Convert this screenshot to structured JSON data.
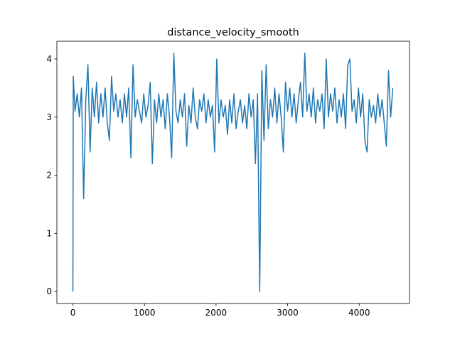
{
  "chart_data": {
    "type": "line",
    "title": "distance_velocity_smooth",
    "series": [
      {
        "color": "#1f77b4",
        "x": [
          0,
          5,
          30,
          60,
          90,
          120,
          150,
          180,
          210,
          240,
          270,
          300,
          330,
          360,
          390,
          420,
          450,
          480,
          510,
          540,
          570,
          600,
          630,
          660,
          690,
          720,
          750,
          780,
          810,
          840,
          870,
          900,
          930,
          960,
          990,
          1020,
          1050,
          1080,
          1110,
          1140,
          1170,
          1200,
          1230,
          1260,
          1290,
          1320,
          1350,
          1380,
          1410,
          1440,
          1470,
          1500,
          1530,
          1560,
          1590,
          1620,
          1650,
          1680,
          1710,
          1740,
          1770,
          1800,
          1830,
          1860,
          1890,
          1920,
          1950,
          1980,
          2010,
          2040,
          2070,
          2100,
          2130,
          2160,
          2190,
          2220,
          2250,
          2280,
          2310,
          2340,
          2370,
          2400,
          2430,
          2460,
          2490,
          2520,
          2550,
          2580,
          2610,
          2640,
          2670,
          2700,
          2730,
          2760,
          2790,
          2820,
          2850,
          2880,
          2910,
          2940,
          2970,
          3000,
          3030,
          3060,
          3090,
          3120,
          3150,
          3180,
          3210,
          3240,
          3270,
          3300,
          3330,
          3360,
          3390,
          3420,
          3450,
          3480,
          3510,
          3540,
          3570,
          3600,
          3630,
          3660,
          3690,
          3720,
          3750,
          3780,
          3810,
          3840,
          3870,
          3900,
          3930,
          3960,
          3990,
          4020,
          4050,
          4080,
          4110,
          4140,
          4170,
          4200,
          4230,
          4260,
          4290,
          4320,
          4350,
          4380,
          4410,
          4440,
          4470
        ],
        "values": [
          0,
          3.7,
          3.1,
          3.4,
          3.0,
          3.5,
          1.6,
          3.3,
          3.9,
          2.4,
          3.5,
          3.0,
          3.6,
          2.9,
          3.4,
          3.0,
          3.5,
          2.9,
          2.6,
          3.7,
          3.1,
          3.4,
          3.0,
          3.3,
          2.9,
          3.4,
          3.0,
          3.5,
          2.3,
          3.9,
          3.0,
          3.3,
          3.1,
          2.9,
          3.4,
          3.0,
          3.2,
          3.6,
          2.2,
          3.3,
          2.9,
          3.4,
          3.0,
          3.3,
          2.8,
          3.4,
          3.0,
          2.3,
          4.1,
          3.1,
          2.9,
          3.3,
          3.0,
          3.4,
          2.5,
          3.2,
          2.9,
          3.5,
          3.0,
          2.8,
          3.3,
          3.1,
          3.4,
          2.9,
          3.3,
          3.0,
          3.2,
          2.4,
          4.0,
          2.9,
          3.3,
          3.0,
          3.2,
          2.7,
          3.3,
          2.9,
          3.4,
          2.8,
          3.1,
          3.3,
          2.9,
          3.2,
          2.8,
          3.4,
          3.0,
          3.3,
          2.2,
          3.4,
          0.0,
          3.8,
          2.6,
          3.9,
          2.8,
          3.3,
          3.0,
          3.5,
          2.9,
          3.4,
          3.0,
          2.4,
          3.6,
          3.1,
          3.5,
          3.0,
          3.4,
          2.9,
          3.3,
          3.6,
          3.0,
          4.1,
          3.1,
          3.4,
          3.0,
          3.5,
          2.9,
          3.3,
          3.1,
          3.4,
          2.8,
          4.0,
          3.0,
          3.4,
          3.1,
          3.5,
          2.9,
          3.3,
          3.0,
          3.4,
          2.8,
          3.9,
          4.0,
          3.1,
          3.3,
          2.9,
          3.5,
          3.0,
          3.4,
          2.6,
          2.4,
          3.3,
          3.0,
          3.2,
          2.9,
          3.4,
          3.0,
          3.3,
          2.9,
          2.5,
          3.8,
          3.0,
          3.5
        ]
      }
    ],
    "xlim": [
      -224,
      4703
    ],
    "ylim": [
      -0.205,
      4.305
    ],
    "xticks": [
      0,
      1000,
      2000,
      3000,
      4000
    ],
    "yticks": [
      0,
      1,
      2,
      3,
      4
    ]
  }
}
